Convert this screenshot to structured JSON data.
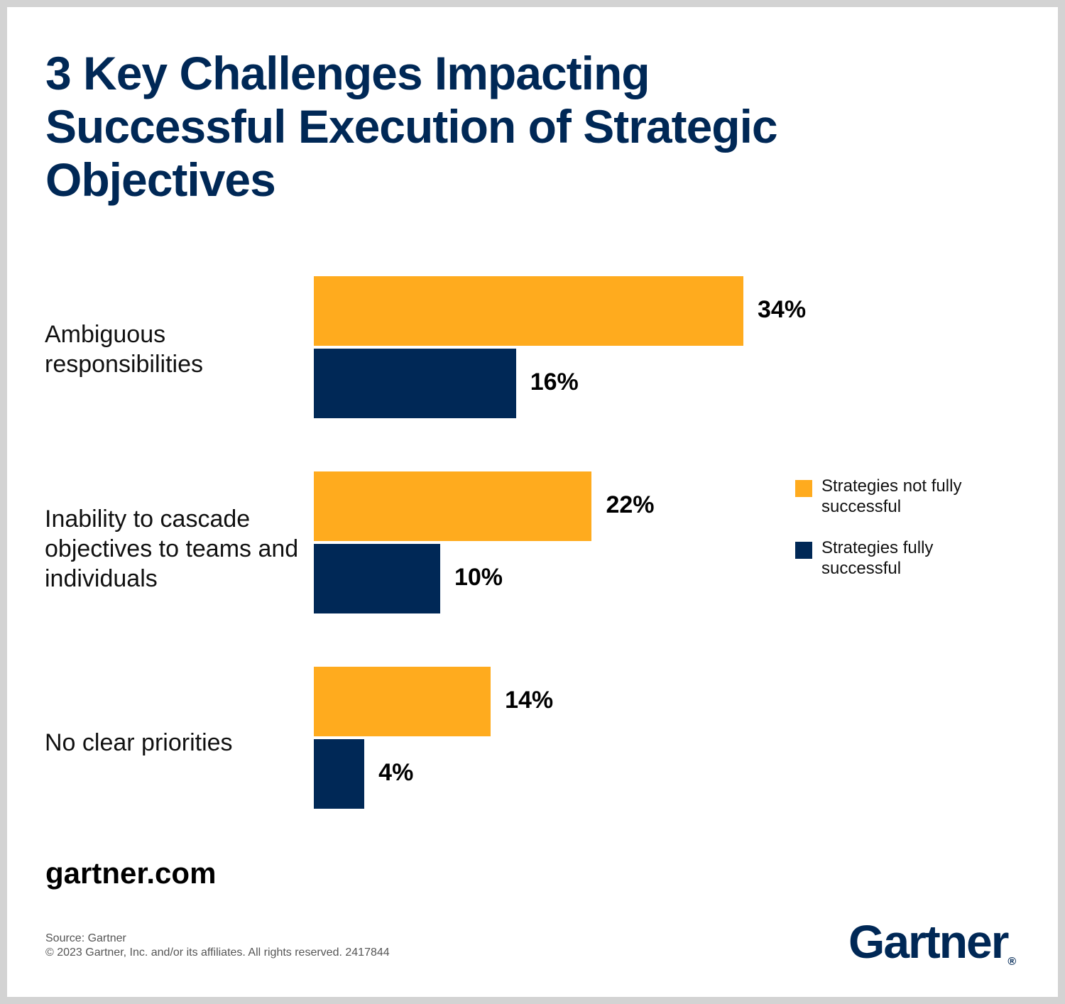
{
  "title": "3 Key Challenges Impacting Successful Execution of Strategic Objectives",
  "chart_data": {
    "type": "bar",
    "orientation": "horizontal",
    "title": "3 Key Challenges Impacting Successful Execution of Strategic Objectives",
    "categories": [
      "Ambiguous responsibilities",
      "Inability to cascade objectives to teams and individuals",
      "No clear priorities"
    ],
    "series": [
      {
        "name": "Strategies not fully successful",
        "values": [
          34,
          22,
          14
        ],
        "labels": [
          "34%",
          "22%",
          "14%"
        ],
        "color": "#FFAB1E"
      },
      {
        "name": "Strategies fully successful",
        "values": [
          16,
          10,
          4
        ],
        "labels": [
          "16%",
          "10%",
          "4%"
        ],
        "color": "#002856"
      }
    ],
    "xlim": [
      0,
      34
    ],
    "grid": false,
    "axes_shown": false,
    "legend_position": "right"
  },
  "website": "gartner.com",
  "source": "Source: Gartner",
  "copyright": "© 2023 Gartner, Inc. and/or its affiliates. All rights reserved. 2417844",
  "logo": "Gartner"
}
